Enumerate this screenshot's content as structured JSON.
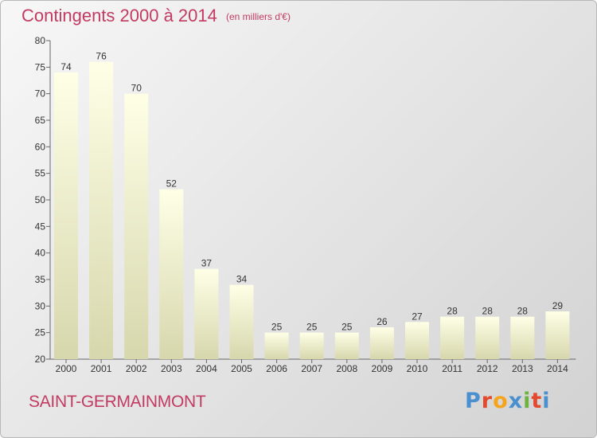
{
  "title": "Contingents 2000 à 2014",
  "subtitle": "(en milliers d'€)",
  "place": "SAINT-GERMAINMONT",
  "logo": "Proxiti",
  "colors": {
    "title": "#c23b62",
    "bar_top": "#feffe6",
    "bar_bottom": "#d7d7ad",
    "logo_letters": [
      "#4a8fd0",
      "#e2492d",
      "#f5a41d",
      "#4a8fd0",
      "#6cb33f",
      "#e2492d",
      "#4a8fd0"
    ]
  },
  "chart_data": {
    "type": "bar",
    "categories": [
      "2000",
      "2001",
      "2002",
      "2003",
      "2004",
      "2005",
      "2006",
      "2007",
      "2008",
      "2009",
      "2010",
      "2011",
      "2012",
      "2013",
      "2014"
    ],
    "values": [
      74,
      76,
      70,
      52,
      37,
      34,
      25,
      25,
      25,
      26,
      27,
      28,
      28,
      28,
      29
    ],
    "title": "Contingents 2000 à 2014",
    "subtitle": "(en milliers d'€)",
    "ylim": [
      20,
      80
    ],
    "yticks": [
      20,
      25,
      30,
      35,
      40,
      45,
      50,
      55,
      60,
      65,
      70,
      75,
      80
    ],
    "grid": false,
    "data_labels": true
  }
}
